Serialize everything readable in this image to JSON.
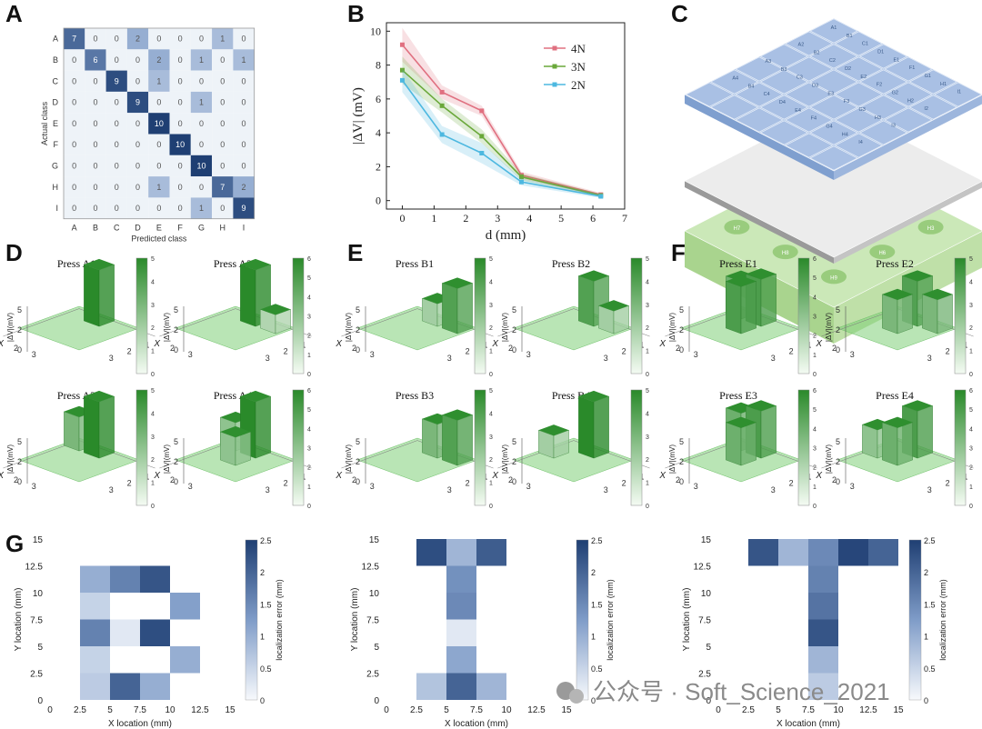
{
  "panel_labels": {
    "A": "A",
    "B": "B",
    "C": "C",
    "D": "D",
    "E": "E",
    "F": "F",
    "G": "G"
  },
  "watermark": "公众号 · Soft_Science_2021",
  "colors": {
    "heat_dark": "#1f3f73",
    "heat_mid": "#5a7fb5",
    "heat_light": "#dde6f2",
    "green_dark": "#2a8a2a",
    "green_light": "#cfeccc",
    "line_4N": "#e07080",
    "line_3N": "#6aa83a",
    "line_2N": "#4db8e0"
  },
  "chart_data": [
    {
      "type": "heatmap",
      "id": "A",
      "xlabel": "Predicted class",
      "ylabel": "Actual class",
      "classes": [
        "A",
        "B",
        "C",
        "D",
        "E",
        "F",
        "G",
        "H",
        "I"
      ],
      "matrix": [
        [
          7,
          0,
          0,
          2,
          0,
          0,
          0,
          1,
          0
        ],
        [
          0,
          6,
          0,
          0,
          2,
          0,
          1,
          0,
          1
        ],
        [
          0,
          0,
          9,
          0,
          1,
          0,
          0,
          0,
          0
        ],
        [
          0,
          0,
          0,
          9,
          0,
          0,
          1,
          0,
          0
        ],
        [
          0,
          0,
          0,
          0,
          10,
          0,
          0,
          0,
          0
        ],
        [
          0,
          0,
          0,
          0,
          0,
          10,
          0,
          0,
          0
        ],
        [
          0,
          0,
          0,
          0,
          0,
          0,
          10,
          0,
          0
        ],
        [
          0,
          0,
          0,
          0,
          1,
          0,
          0,
          7,
          2
        ],
        [
          0,
          0,
          0,
          0,
          0,
          0,
          1,
          0,
          9
        ]
      ]
    },
    {
      "type": "line",
      "id": "B",
      "xlabel": "d (mm)",
      "ylabel": "|ΔV| (mV)",
      "xlim": [
        -0.5,
        7
      ],
      "ylim": [
        -0.5,
        10.5
      ],
      "xticks": [
        0,
        1,
        2,
        3,
        4,
        5,
        6,
        7
      ],
      "yticks": [
        0,
        2,
        4,
        6,
        8,
        10
      ],
      "x": [
        0,
        1.25,
        2.5,
        3.75,
        6.25
      ],
      "series": [
        {
          "name": "4N",
          "values": [
            9.2,
            6.4,
            5.3,
            1.5,
            0.35
          ],
          "band": [
            1.0,
            0.4,
            0.3,
            0.2,
            0.1
          ]
        },
        {
          "name": "3N",
          "values": [
            7.7,
            5.6,
            3.8,
            1.4,
            0.3
          ],
          "band": [
            0.8,
            0.4,
            0.4,
            0.2,
            0.1
          ]
        },
        {
          "name": "2N",
          "values": [
            7.1,
            3.9,
            2.8,
            1.1,
            0.25
          ],
          "band": [
            0.7,
            0.5,
            0.6,
            0.2,
            0.1
          ]
        }
      ]
    },
    {
      "type": "bar3d",
      "id": "D",
      "cbar_max": [
        5,
        6,
        5,
        6
      ],
      "cbar_ticks": [
        [
          0,
          1,
          2,
          3,
          4,
          5
        ],
        [
          0,
          1,
          2,
          3,
          4,
          5,
          6
        ],
        [
          0,
          1,
          2,
          3,
          4,
          5
        ],
        [
          0,
          1,
          2,
          3,
          4,
          5,
          6
        ]
      ],
      "zlabel": "|ΔV|(mV)",
      "axis_x": "X",
      "axis_y": "Y",
      "subplots": [
        "Press A1",
        "Press A2",
        "Press A3",
        "Press A4"
      ]
    },
    {
      "type": "bar3d",
      "id": "E",
      "cbar_max": [
        5,
        5,
        5,
        5
      ],
      "cbar_ticks": [
        [
          0,
          1,
          2,
          3,
          4,
          5
        ],
        [
          0,
          1,
          2,
          3,
          4,
          5
        ],
        [
          0,
          1,
          2,
          3,
          4,
          5
        ],
        [
          0,
          1,
          2,
          3,
          4,
          5
        ]
      ],
      "zlabel": "|ΔV|(mV)",
      "axis_x": "X",
      "axis_y": "Y",
      "subplots": [
        "Press B1",
        "Press B2",
        "Press B3",
        "Press B4"
      ]
    },
    {
      "type": "bar3d",
      "id": "F",
      "cbar_max": [
        6,
        5,
        6,
        6
      ],
      "cbar_ticks": [
        [
          0,
          1,
          2,
          3,
          4,
          5,
          6
        ],
        [
          0,
          1,
          2,
          3,
          4,
          5
        ],
        [
          0,
          1,
          2,
          3,
          4,
          5,
          6
        ],
        [
          0,
          1,
          2,
          3,
          4,
          5,
          6
        ]
      ],
      "zlabel": "|ΔV|(mV)",
      "axis_x": "X",
      "axis_y": "Y",
      "subplots": [
        "Press E1",
        "Press E2",
        "Press E3",
        "Press E4"
      ]
    },
    {
      "type": "heatmap",
      "id": "G1",
      "xlabel": "X location (mm)",
      "ylabel": "Y location (mm)",
      "cbar_label": "localization error (mm)",
      "cbar_ticks": [
        "0",
        "0.5",
        "1",
        "1.5",
        "2",
        "2.5"
      ],
      "xticks": [
        "0",
        "2.5",
        "5",
        "7.5",
        "10",
        "12.5",
        "15"
      ],
      "yticks": [
        "0",
        "2.5",
        "5",
        "7.5",
        "10",
        "12.5",
        "15"
      ],
      "cells": [
        {
          "col": 1,
          "row": 4,
          "v": 1.0
        },
        {
          "col": 2,
          "row": 4,
          "v": 1.6
        },
        {
          "col": 3,
          "row": 4,
          "v": 2.2
        },
        {
          "col": 1,
          "row": 3,
          "v": 0.5
        },
        {
          "col": 4,
          "row": 3,
          "v": 1.2
        },
        {
          "col": 1,
          "row": 2,
          "v": 1.6
        },
        {
          "col": 2,
          "row": 2,
          "v": 0.2
        },
        {
          "col": 3,
          "row": 2,
          "v": 2.3
        },
        {
          "col": 1,
          "row": 1,
          "v": 0.5
        },
        {
          "col": 4,
          "row": 1,
          "v": 1.0
        },
        {
          "col": 1,
          "row": 0,
          "v": 0.6
        },
        {
          "col": 2,
          "row": 0,
          "v": 2.0
        },
        {
          "col": 3,
          "row": 0,
          "v": 1.0
        }
      ]
    },
    {
      "type": "heatmap",
      "id": "G2",
      "xlabel": "X location (mm)",
      "ylabel": "Y location (mm)",
      "cbar_label": "localization error (mm)",
      "cbar_ticks": [
        "0",
        "0.5",
        "1",
        "1.5",
        "2",
        "2.5"
      ],
      "xticks": [
        "0",
        "2.5",
        "5",
        "7.5",
        "10",
        "12.5",
        "15"
      ],
      "yticks": [
        "0",
        "2.5",
        "5",
        "7.5",
        "10",
        "12.5",
        "15"
      ],
      "cells": [
        {
          "col": 1,
          "row": 5,
          "v": 2.3
        },
        {
          "col": 2,
          "row": 5,
          "v": 0.9
        },
        {
          "col": 3,
          "row": 5,
          "v": 2.1
        },
        {
          "col": 2,
          "row": 4,
          "v": 1.4
        },
        {
          "col": 2,
          "row": 3,
          "v": 1.5
        },
        {
          "col": 2,
          "row": 2,
          "v": 0.2
        },
        {
          "col": 2,
          "row": 1,
          "v": 1.1
        },
        {
          "col": 1,
          "row": 0,
          "v": 0.7
        },
        {
          "col": 2,
          "row": 0,
          "v": 2.0
        },
        {
          "col": 3,
          "row": 0,
          "v": 0.9
        }
      ]
    },
    {
      "type": "heatmap",
      "id": "G3",
      "xlabel": "X location (mm)",
      "ylabel": "Y location (mm)",
      "cbar_label": "localization error (mm)",
      "cbar_ticks": [
        "0",
        "0.5",
        "1",
        "1.5",
        "2",
        "2.5"
      ],
      "xticks": [
        "0",
        "2.5",
        "5",
        "7.5",
        "10",
        "12.5",
        "15"
      ],
      "yticks": [
        "0",
        "2.5",
        "5",
        "7.5",
        "10",
        "12.5",
        "15"
      ],
      "cells": [
        {
          "col": 1,
          "row": 5,
          "v": 2.2
        },
        {
          "col": 2,
          "row": 5,
          "v": 0.9
        },
        {
          "col": 3,
          "row": 5,
          "v": 1.5
        },
        {
          "col": 4,
          "row": 5,
          "v": 2.4
        },
        {
          "col": 5,
          "row": 5,
          "v": 2.0
        },
        {
          "col": 3,
          "row": 4,
          "v": 1.6
        },
        {
          "col": 3,
          "row": 3,
          "v": 1.8
        },
        {
          "col": 3,
          "row": 2,
          "v": 2.2
        },
        {
          "col": 3,
          "row": 1,
          "v": 0.9
        },
        {
          "col": 3,
          "row": 0,
          "v": 0.6
        }
      ]
    }
  ],
  "diagram_C": {
    "top_grid": [
      [
        "A1",
        "A2",
        "A3",
        "A4"
      ],
      [
        "B1",
        "B2",
        "B3",
        "B4"
      ],
      [
        "C1",
        "C2",
        "C3",
        "C4"
      ],
      [
        "D1",
        "D2",
        "D3",
        "D4"
      ],
      [
        "E1",
        "E2",
        "E3",
        "E4"
      ],
      [
        "F1",
        "F2",
        "F3",
        "F4"
      ],
      [
        "G1",
        "G2",
        "G3",
        "G4"
      ],
      [
        "H1",
        "H2",
        "H3",
        "H4"
      ],
      [
        "I1",
        "I2",
        "I3",
        "I4"
      ]
    ],
    "bottom_pads": [
      "H1",
      "H2",
      "H3",
      "H4",
      "H5",
      "H6",
      "H7",
      "H8",
      "H9"
    ]
  }
}
